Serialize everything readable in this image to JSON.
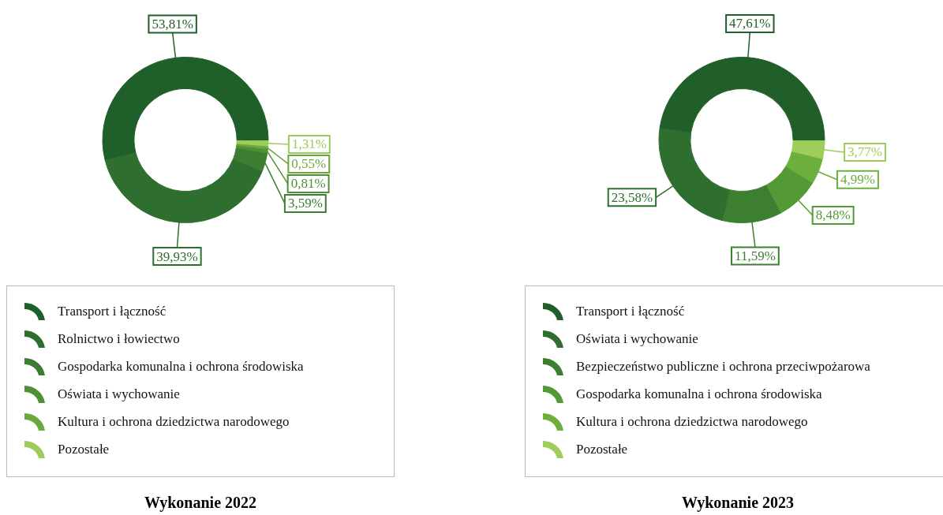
{
  "chart_data": [
    {
      "type": "donut",
      "title": "Wykonanie 2022",
      "legend": "bottom",
      "categories": [
        "Transport i łączność",
        "Rolnictwo i łowiectwo",
        "Gospodarka komunalna i ochrona środowiska",
        "Oświata i wychowanie",
        "Kultura i ochrona dziedzictwa narodowego",
        "Pozostałe"
      ],
      "values": [
        53.81,
        39.93,
        3.59,
        0.81,
        0.55,
        1.31
      ],
      "value_labels": [
        "53,81%",
        "39,93%",
        "3,59%",
        "0,81%",
        "0,55%",
        "1,31%"
      ],
      "colors": [
        "#1f5f2a",
        "#2e6f2f",
        "#3b7e32",
        "#4f9036",
        "#6aa83c",
        "#9ccc5a"
      ]
    },
    {
      "type": "donut",
      "title": "Wykonanie 2023",
      "legend": "bottom",
      "categories": [
        "Transport i łączność",
        "Oświata i wychowanie",
        "Bezpieczeństwo publiczne i ochrona przeciwpożarowa",
        "Gospodarka komunalna i ochrona środowiska",
        "Kultura i ochrona dziedzictwa narodowego",
        "Pozostałe"
      ],
      "values": [
        47.61,
        23.58,
        11.59,
        8.48,
        4.99,
        3.77
      ],
      "value_labels": [
        "47,61%",
        "23,58%",
        "11,59%",
        "8,48%",
        "4,99%",
        "3,77%"
      ],
      "colors": [
        "#215f2a",
        "#2e6f2f",
        "#3d7f31",
        "#539a36",
        "#6eae3d",
        "#9fcd5b"
      ]
    }
  ]
}
